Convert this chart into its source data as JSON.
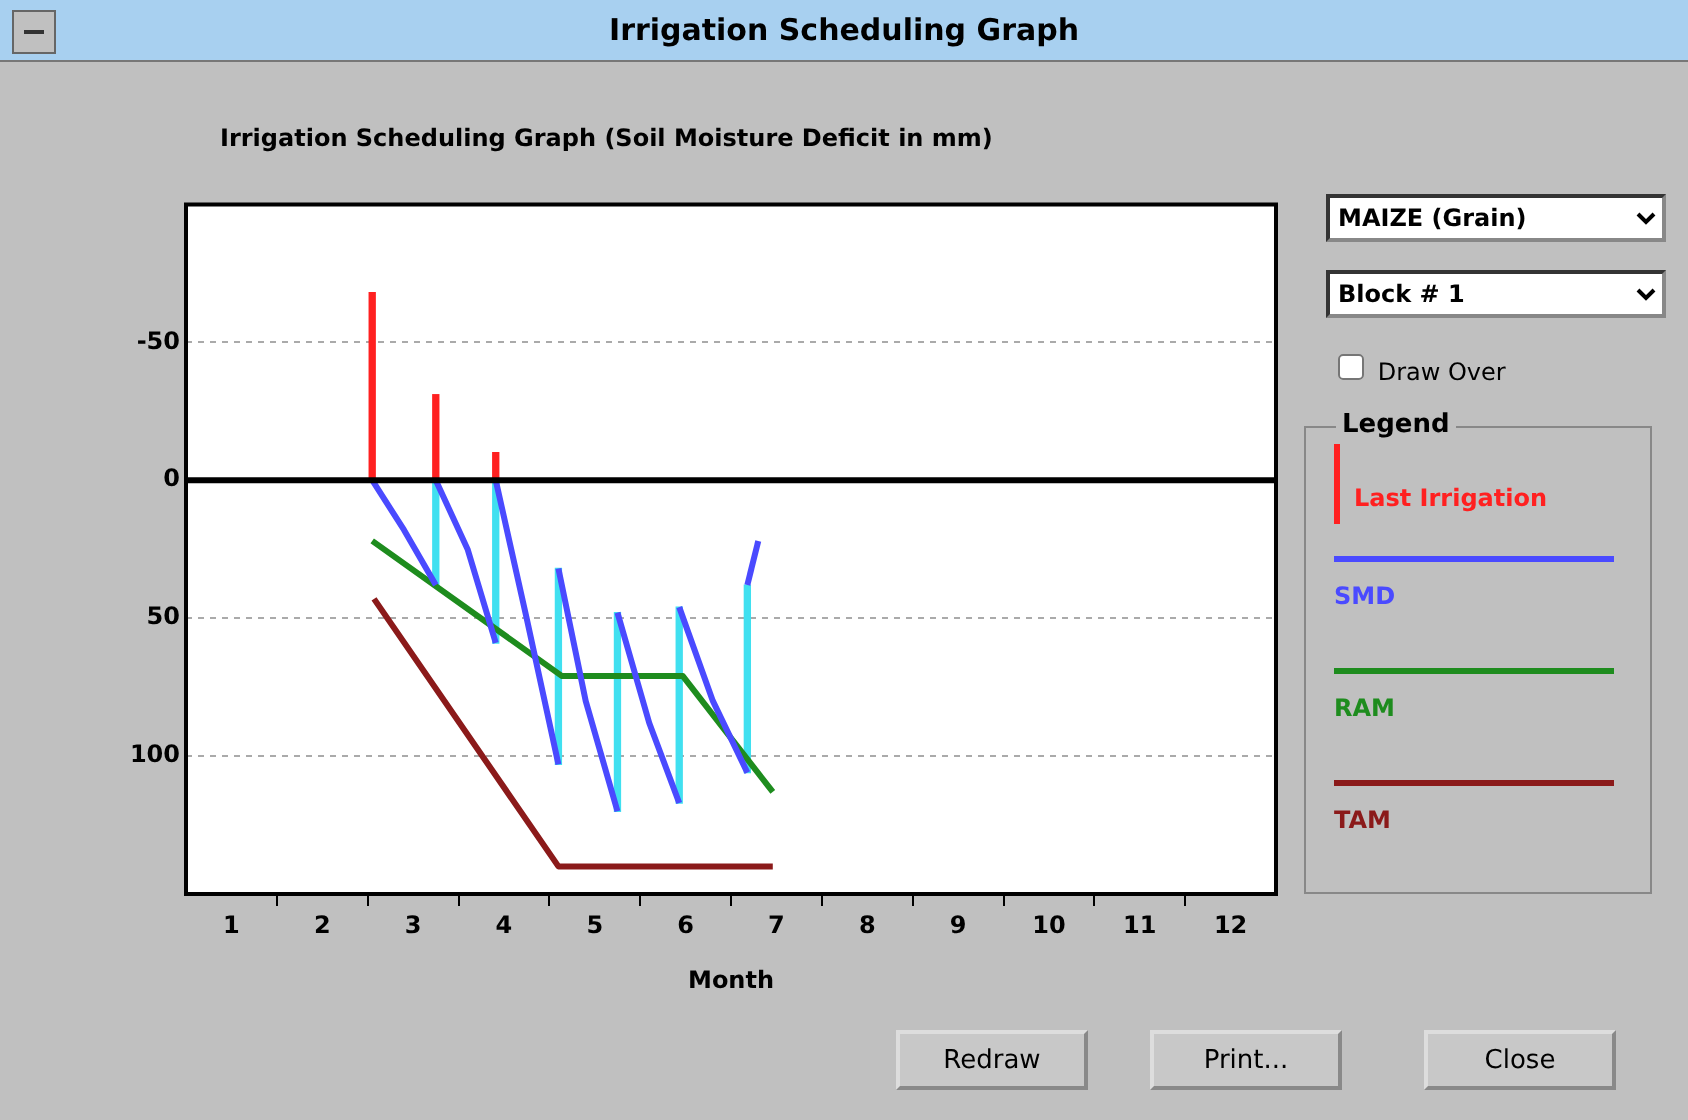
{
  "chart_data": {
    "type": "line",
    "title": "Irrigation Scheduling Graph",
    "subtitle": "Irrigation Scheduling Graph (Soil Moisture Deficit in mm)",
    "xlabel": "Month",
    "legend_title": "Legend",
    "legend": "right",
    "grid": "y",
    "annotations": [
      "MAIZE  (Grain)",
      "Block # 1",
      "Draw Over",
      "Redraw",
      "Print...",
      "Close"
    ],
    "xlim": [
      0.5,
      12.5
    ],
    "xticks": [
      1,
      {
        "value": 1.5,
        "label": null
      },
      2,
      {
        "value": 2.5,
        "label": null
      },
      3,
      {
        "value": 3.5,
        "label": null
      },
      4,
      {
        "value": 4.5,
        "label": null
      },
      5,
      {
        "value": 5.5,
        "label": null
      },
      6,
      {
        "value": 6.5,
        "label": null
      },
      7,
      {
        "value": 7.5,
        "label": null
      },
      8,
      {
        "value": 8.5,
        "label": null
      },
      9,
      {
        "value": 9.5,
        "label": null
      },
      10,
      {
        "value": 10.5,
        "label": null
      },
      11,
      {
        "value": 11.5,
        "label": null
      },
      12
    ],
    "ylim": [
      150,
      -100
    ],
    "yticks": [
      -50,
      0,
      50,
      100
    ],
    "ref_lines": [
      {
        "axis": "y",
        "value": 0,
        "color": "#000000"
      }
    ],
    "series": [
      {
        "name": "Last Irrigation",
        "type": "bar",
        "color": "#ff2020",
        "x": [
          2.55,
          3.25,
          3.91
        ],
        "values": [
          -68,
          -31,
          -10
        ]
      },
      {
        "type": "bar",
        "color": "#40e0f0",
        "x": [
          3.25,
          3.91,
          4.6,
          5.25,
          5.93,
          6.68
        ],
        "base": [
          0,
          0,
          32,
          48,
          46,
          38
        ],
        "values": [
          38,
          59,
          71,
          72,
          71,
          68
        ]
      },
      {
        "name": "SMD",
        "color": "#4a4aff",
        "x": [
          2.55,
          2.9,
          3.25,
          3.25,
          3.6,
          3.91,
          3.91,
          4.25,
          4.6,
          4.6,
          4.9,
          5.25,
          5.25,
          5.6,
          5.93,
          5.93,
          6.3,
          6.68,
          6.68,
          6.8
        ],
        "values": [
          0,
          18,
          38,
          0,
          25,
          59,
          0,
          50,
          103,
          32,
          80,
          120,
          48,
          88,
          117,
          46,
          80,
          106,
          38,
          22
        ]
      },
      {
        "name": "RAM",
        "color": "#1e8c1e",
        "x": [
          2.55,
          4.64,
          5.97,
          6.96
        ],
        "values": [
          22,
          71,
          71,
          113
        ]
      },
      {
        "name": "TAM",
        "color": "#8b1a1a",
        "x": [
          2.57,
          4.6,
          6.96
        ],
        "values": [
          43,
          140,
          140
        ]
      }
    ]
  }
}
